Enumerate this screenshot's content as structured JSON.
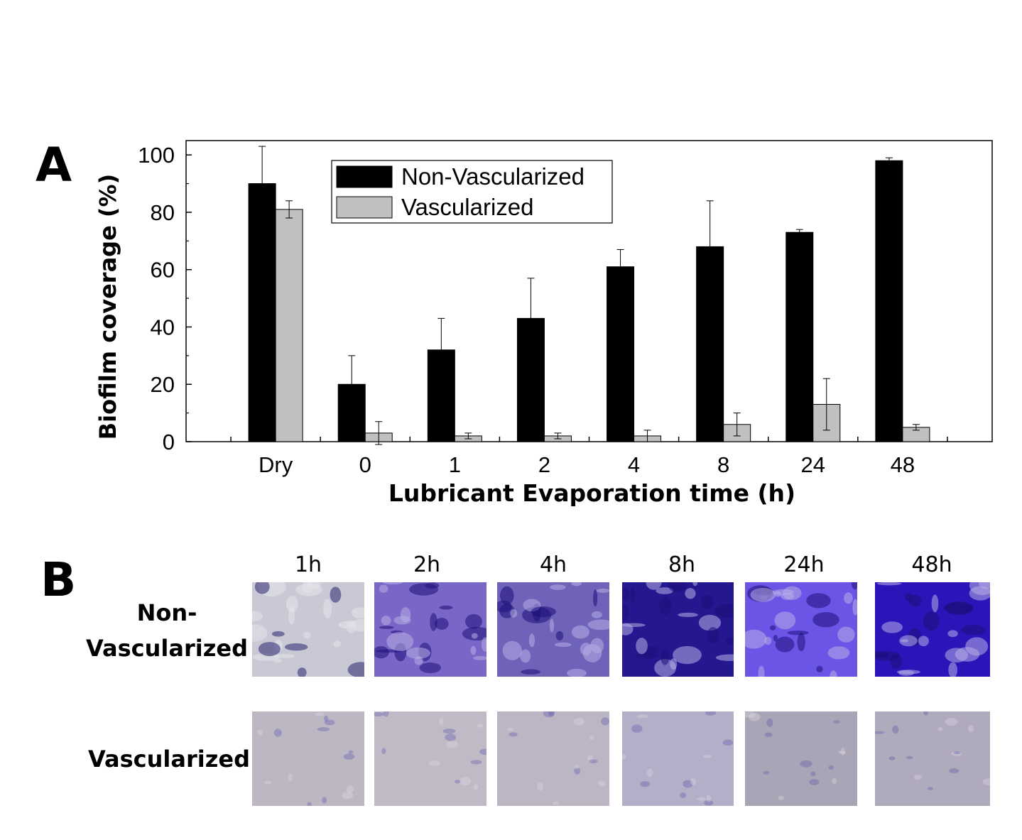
{
  "panel_a_letter": "A",
  "panel_b_letter": "B",
  "chart_data": {
    "type": "bar",
    "xlabel": "Lubricant Evaporation time (h)",
    "ylabel": "Biofilm coverage (%)",
    "ylim": [
      0,
      105
    ],
    "yticks": [
      0,
      20,
      40,
      60,
      80,
      100
    ],
    "grid": false,
    "legend_position": "top-center",
    "categories": [
      "Dry",
      "0",
      "1",
      "2",
      "4",
      "8",
      "24",
      "48"
    ],
    "series": [
      {
        "name": "Non-Vascularized",
        "color": "#000000",
        "values": [
          90,
          20,
          32,
          43,
          61,
          68,
          73,
          98
        ],
        "errors": [
          13,
          10,
          11,
          14,
          6,
          16,
          1,
          1
        ]
      },
      {
        "name": "Vascularized",
        "color": "#c0c0c0",
        "values": [
          81,
          3,
          2,
          2,
          2,
          6,
          13,
          5
        ],
        "errors": [
          3,
          4,
          1,
          1,
          2,
          4,
          9,
          1
        ]
      }
    ]
  },
  "images_panel": {
    "columns": [
      "1h",
      "2h",
      "4h",
      "8h",
      "24h",
      "48h"
    ],
    "rows": [
      {
        "label_line1": "Non-",
        "label_line2": "Vascularized",
        "tile_colors": [
          "#c9c9d6",
          "#7a66c6",
          "#6e63b8",
          "#25178f",
          "#6a55e6",
          "#2b14b8"
        ]
      },
      {
        "label_line1": "",
        "label_line2": "Vascularized",
        "tile_colors": [
          "#bdb7c4",
          "#c0bac6",
          "#bcb5c4",
          "#b4aec8",
          "#a9a5b6",
          "#b0aabd"
        ]
      }
    ]
  }
}
